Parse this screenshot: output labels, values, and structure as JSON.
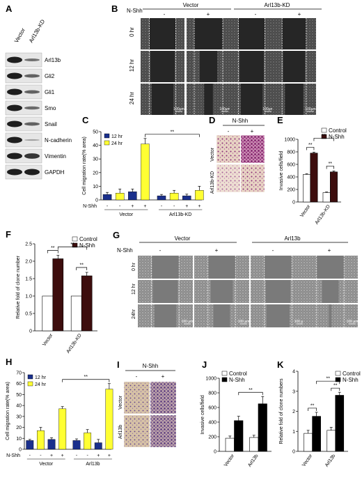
{
  "panels": {
    "A": {
      "label": "A",
      "columns": [
        "Vector",
        "Arl13b-KD"
      ],
      "bands": [
        "Arl13b",
        "Gli2",
        "Gli1",
        "Smo",
        "Snail",
        "N-cadherin",
        "Vimentin",
        "GAPDH"
      ],
      "band_ratio_kd": [
        0.45,
        0.55,
        0.55,
        0.5,
        0.55,
        0.12,
        0.85,
        1.0
      ]
    },
    "B": {
      "label": "B",
      "groups": [
        "Vector",
        "Arl13b-KD"
      ],
      "treatment_label": "N-Shh",
      "signs": [
        "-",
        "+",
        "-",
        "+"
      ],
      "rows": [
        "0 hr",
        "12 hr",
        "24 hr"
      ],
      "scale": "100μm"
    },
    "C": {
      "label": "C",
      "chart_data": {
        "type": "bar",
        "ylabel": "Cell migration rate(% area)",
        "ylim": [
          0,
          50
        ],
        "yticks": [
          "0",
          "10",
          "20",
          "30",
          "40",
          "50"
        ],
        "legend": [
          "12 hr",
          "24 hr"
        ],
        "colors": [
          "#1a2f8c",
          "#ffff33"
        ],
        "treatment_label": "N-Shh",
        "signs": [
          "-",
          "-",
          "+",
          "+",
          "-",
          "-",
          "+",
          "+"
        ],
        "groups": [
          "Vector",
          "Arl13b-KD"
        ],
        "series": [
          {
            "name": "12 hr",
            "values": [
              4,
              6,
              3,
              3
            ],
            "errors": [
              1.5,
              2,
              1,
              1.2
            ]
          },
          {
            "name": "24 hr",
            "values": [
              5,
              41,
              5,
              7
            ],
            "errors": [
              3,
              4,
              2,
              3
            ]
          }
        ],
        "significance": "**"
      }
    },
    "D": {
      "label": "D",
      "treatment_label": "N-Shh",
      "signs": [
        "-",
        "+"
      ],
      "rows": [
        "Vector",
        "Arl13b-KD"
      ]
    },
    "E": {
      "label": "E",
      "chart_data": {
        "type": "bar",
        "ylabel": "Invasive cells/field",
        "ylim": [
          0,
          1000
        ],
        "yticks": [
          "0",
          "200",
          "400",
          "600",
          "800",
          "1000"
        ],
        "categories": [
          "Vector",
          "Arl13b-KD"
        ],
        "legend": [
          "Control",
          "N-Shh"
        ],
        "colors": [
          "#ffffff",
          "#3d0d0d"
        ],
        "series": [
          {
            "name": "Control",
            "values": [
              440,
              150
            ],
            "errors": [
              10,
              10
            ]
          },
          {
            "name": "N-Shh",
            "values": [
              780,
              480
            ],
            "errors": [
              15,
              15
            ]
          }
        ],
        "significance": [
          "**",
          "**",
          "**"
        ]
      }
    },
    "F": {
      "label": "F",
      "chart_data": {
        "type": "bar",
        "ylabel": "Relative fold of clone number",
        "ylim": [
          0,
          2.5
        ],
        "yticks": [
          "0",
          "0.5",
          "1.0",
          "1.5",
          "2.0",
          "2.5"
        ],
        "categories": [
          "Vector",
          "Arl13b-KD"
        ],
        "legend": [
          "Control",
          "N-Shh"
        ],
        "colors": [
          "#ffffff",
          "#3d0d0d"
        ],
        "series": [
          {
            "name": "Control",
            "values": [
              1.0,
              1.0
            ],
            "errors": [
              0,
              0
            ]
          },
          {
            "name": "N-Shh",
            "values": [
              2.07,
              1.58
            ],
            "errors": [
              0.1,
              0.1
            ]
          }
        ],
        "significance": [
          "**",
          "**",
          "**"
        ]
      }
    },
    "G": {
      "label": "G",
      "groups": [
        "Vector",
        "Arl13b"
      ],
      "treatment_label": "N-Shh",
      "signs": [
        "-",
        "+",
        "-",
        "+"
      ],
      "rows": [
        "0 hr",
        "12 hr",
        "24hr"
      ],
      "scale": "100 μm"
    },
    "H": {
      "label": "H",
      "chart_data": {
        "type": "bar",
        "ylabel": "Cell migration rate(% area)",
        "ylim": [
          0,
          70
        ],
        "yticks": [
          "0",
          "10",
          "20",
          "30",
          "40",
          "50",
          "60",
          "70"
        ],
        "legend": [
          "12 hr",
          "24 hr"
        ],
        "colors": [
          "#1a2f8c",
          "#ffff33"
        ],
        "treatment_label": "N-Shh",
        "signs": [
          "-",
          "-",
          "+",
          "+",
          "-",
          "-",
          "+",
          "+"
        ],
        "groups": [
          "Vector",
          "Arl13b"
        ],
        "series": [
          {
            "name": "12 hr",
            "values": [
              8,
              9,
              8,
              6
            ],
            "errors": [
              1,
              1.5,
              1.5,
              3
            ]
          },
          {
            "name": "24 hr",
            "values": [
              17,
              37,
              15,
              55
            ],
            "errors": [
              3,
              2,
              3,
              5
            ]
          }
        ],
        "significance": "**"
      }
    },
    "I": {
      "label": "I",
      "treatment_label": "N-Shh",
      "signs": [
        "-",
        "+"
      ],
      "rows": [
        "Vector",
        "Arl13b"
      ]
    },
    "J": {
      "label": "J",
      "chart_data": {
        "type": "bar",
        "ylabel": "Invasive cells/field",
        "ylim": [
          0,
          1000
        ],
        "yticks": [
          "0",
          "200",
          "400",
          "600",
          "800",
          "1000"
        ],
        "categories": [
          "Vector",
          "Arl13b"
        ],
        "legend": [
          "Control",
          "N-Shh"
        ],
        "colors": [
          "#ffffff",
          "#000000"
        ],
        "series": [
          {
            "name": "Control",
            "values": [
              180,
              190
            ],
            "errors": [
              30,
              30
            ]
          },
          {
            "name": "N-Shh",
            "values": [
              420,
              650
            ],
            "errors": [
              60,
              100
            ]
          }
        ],
        "significance": [
          "**"
        ]
      }
    },
    "K": {
      "label": "K",
      "chart_data": {
        "type": "bar",
        "ylabel": "Relative fold of clone numbers",
        "ylim": [
          0,
          4
        ],
        "yticks": [
          "0",
          "1",
          "2",
          "3",
          "4"
        ],
        "categories": [
          "Vector",
          "Arl13b"
        ],
        "legend": [
          "Control",
          "N-Shh"
        ],
        "colors": [
          "#ffffff",
          "#000000"
        ],
        "series": [
          {
            "name": "Control",
            "values": [
              0.9,
              1.05
            ],
            "errors": [
              0.15,
              0.15
            ]
          },
          {
            "name": "N-Shh",
            "values": [
              1.75,
              2.8
            ],
            "errors": [
              0.2,
              0.15
            ]
          }
        ],
        "significance": [
          "**",
          "**",
          "**"
        ]
      }
    }
  }
}
